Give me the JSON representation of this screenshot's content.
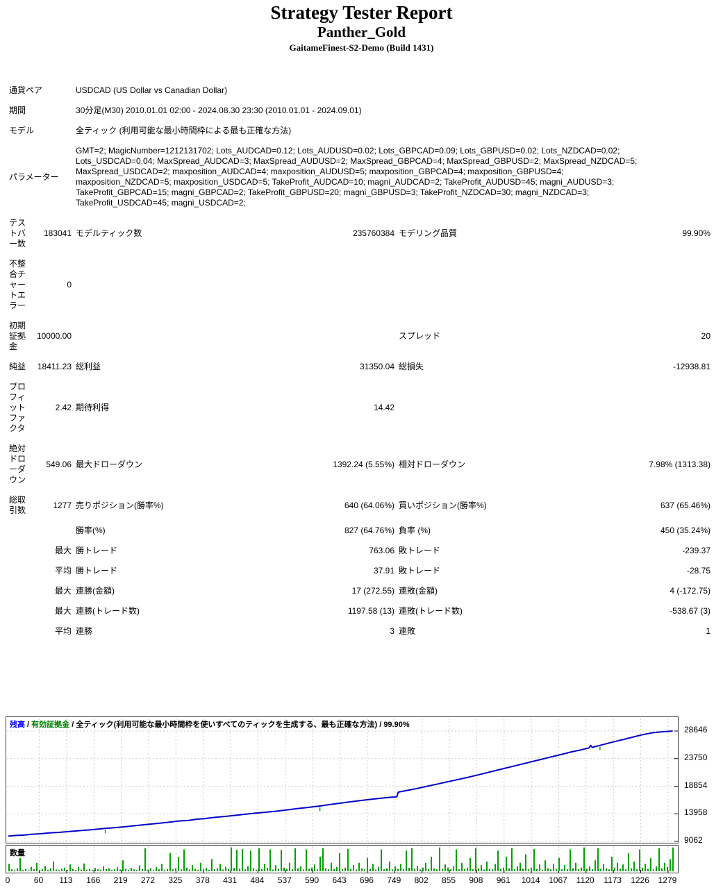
{
  "header": {
    "title": "Strategy Tester Report",
    "ea_name": "Panther_Gold",
    "server": "GaitameFinest-S2-Demo (Build 1431)"
  },
  "table": {
    "rows": [
      {
        "t": "info",
        "label": "通貨ペア",
        "value": "USDCAD (US Dollar vs Canadian Dollar)"
      },
      {
        "t": "info",
        "label": "期間",
        "value": "30分足(M30) 2010.01.01 02:00 - 2024.08.30 23:30 (2010.01.01 - 2024.09.01)"
      },
      {
        "t": "info",
        "label": "モデル",
        "value": "全ティック (利用可能な最小時間枠による最も正確な方法)"
      },
      {
        "t": "info",
        "label": "パラメーター",
        "value": "GMT=2; MagicNumber=1212131702; Lots_AUDCAD=0.12; Lots_AUDUSD=0.02; Lots_GBPCAD=0.09; Lots_GBPUSD=0.02; Lots_NZDCAD=0.02;\nLots_USDCAD=0.04; MaxSpread_AUDCAD=3; MaxSpread_AUDUSD=2; MaxSpread_GBPCAD=4; MaxSpread_GBPUSD=2; MaxSpread_NZDCAD=5;\nMaxSpread_USDCAD=2; maxposition_AUDCAD=4; maxposition_AUDUSD=5; maxposition_GBPCAD=4; maxposition_GBPUSD=4;\nmaxposition_NZDCAD=5; maxposition_USDCAD=5; TakeProfit_AUDCAD=10; magni_AUDCAD=2; TakeProfit_AUDUSD=45; magni_AUDUSD=3;\nTakeProfit_GBPCAD=15; magni_GBPCAD=2; TakeProfit_GBPUSD=20; magni_GBPUSD=3; TakeProfit_NZDCAD=30; magni_NZDCAD=3;\nTakeProfit_USDCAD=45; magni_USDCAD=2;"
      },
      {
        "t": "stat",
        "c": [
          "テス\nトバ\nー数",
          "183041",
          "モデルティック数",
          "235760384",
          "モデリング品質",
          "99.90%"
        ]
      },
      {
        "t": "stat",
        "c": [
          "不整\n合チ\nャー\nトエ\nラー",
          "0",
          "",
          "",
          "",
          ""
        ]
      },
      {
        "t": "stat",
        "c": [
          "初期\n証拠\n金",
          "10000.00",
          "",
          "",
          "スプレッド",
          "20"
        ]
      },
      {
        "t": "stat",
        "c": [
          "純益",
          "18411.23",
          "総利益",
          "31350.04",
          "総損失",
          "-12938.81"
        ]
      },
      {
        "t": "stat",
        "c": [
          "プロ\nフィ\nット\nファ\nクタ",
          "2.42",
          "期待利得",
          "14.42",
          "",
          ""
        ]
      },
      {
        "t": "stat",
        "c": [
          "絶対\nドロ\nーダ\nウン",
          "549.06",
          "最大ドローダウン",
          "1392.24 (5.55%)",
          "相対ドローダウン",
          "7.98% (1313.38)"
        ]
      },
      {
        "t": "stat",
        "c": [
          "総取\n引数",
          "1277",
          "売りポジション(勝率%)",
          "640 (64.06%)",
          "買いポジション(勝率%)",
          "637 (65.46%)"
        ]
      },
      {
        "t": "stat",
        "c": [
          "",
          "",
          "勝率(%)",
          "827 (64.76%)",
          "負率 (%)",
          "450 (35.24%)"
        ]
      },
      {
        "t": "stat",
        "c": [
          "",
          "最大",
          "勝トレード",
          "763.06",
          "敗トレード",
          "-239.37"
        ]
      },
      {
        "t": "stat",
        "c": [
          "",
          "平均",
          "勝トレード",
          "37.91",
          "敗トレード",
          "-28.75"
        ]
      },
      {
        "t": "stat",
        "c": [
          "",
          "最大",
          "連勝(金額)",
          "17 (272.55)",
          "連敗(金額)",
          "4 (-172.75)"
        ]
      },
      {
        "t": "stat",
        "c": [
          "",
          "最大",
          "連勝(トレード数)",
          "1197.58 (13)",
          "連敗(トレード数)",
          "-538.67 (3)"
        ]
      },
      {
        "t": "stat",
        "c": [
          "",
          "平均",
          "連勝",
          "3",
          "連敗",
          "1"
        ]
      }
    ]
  },
  "chart_data": [
    {
      "type": "line",
      "title": "残高 / 有効証拠金 / 全ティック(利用可能な最小時間枠を使いすべてのティックを生成する、最も正確な方法) / 99.90%",
      "legend": {
        "balance_label": "残高",
        "equity_label": "有効証拠金",
        "model_label": "全ティック(利用可能な最小時間枠を使いすべてのティックを生成する、最も正確な方法)",
        "quality_label": "99.90%",
        "sep": " / "
      },
      "colors": {
        "balance_line": "#0000c8",
        "balance_text": "#0000ff",
        "equity_text": "#008000",
        "grid": "#c9c9c9",
        "frame": "#3a3a3a"
      },
      "ylabel": "",
      "xlabel": "",
      "y_ticks": [
        28646,
        23750,
        18854,
        13958,
        9062
      ],
      "x_ticks": [
        0,
        60,
        113,
        166,
        219,
        272,
        325,
        378,
        431,
        484,
        537,
        590,
        643,
        696,
        749,
        802,
        855,
        908,
        961,
        1014,
        1067,
        1120,
        1173,
        1226,
        1279
      ],
      "x_range": [
        0,
        1288
      ],
      "y_range": [
        9062,
        29300
      ],
      "points": [
        [
          0,
          10000
        ],
        [
          15,
          10120
        ],
        [
          30,
          10180
        ],
        [
          45,
          10320
        ],
        [
          60,
          10400
        ],
        [
          80,
          10560
        ],
        [
          100,
          10680
        ],
        [
          120,
          10840
        ],
        [
          140,
          10980
        ],
        [
          160,
          11120
        ],
        [
          188,
          11380
        ],
        [
          210,
          11520
        ],
        [
          230,
          11700
        ],
        [
          250,
          11900
        ],
        [
          270,
          12080
        ],
        [
          290,
          12260
        ],
        [
          310,
          12450
        ],
        [
          330,
          12680
        ],
        [
          350,
          12800
        ],
        [
          365,
          13000
        ],
        [
          380,
          13100
        ],
        [
          400,
          13320
        ],
        [
          420,
          13500
        ],
        [
          440,
          13680
        ],
        [
          460,
          13900
        ],
        [
          480,
          14080
        ],
        [
          500,
          14250
        ],
        [
          520,
          14420
        ],
        [
          540,
          14650
        ],
        [
          560,
          14870
        ],
        [
          580,
          15090
        ],
        [
          600,
          15300
        ],
        [
          604,
          15340
        ],
        [
          620,
          15560
        ],
        [
          640,
          15800
        ],
        [
          660,
          16040
        ],
        [
          680,
          16280
        ],
        [
          700,
          16500
        ],
        [
          720,
          16700
        ],
        [
          740,
          16880
        ],
        [
          750,
          16950
        ],
        [
          753,
          17000
        ],
        [
          756,
          17810
        ],
        [
          770,
          18050
        ],
        [
          790,
          18400
        ],
        [
          810,
          18800
        ],
        [
          830,
          19200
        ],
        [
          850,
          19600
        ],
        [
          870,
          20000
        ],
        [
          890,
          20400
        ],
        [
          910,
          20850
        ],
        [
          930,
          21300
        ],
        [
          950,
          21750
        ],
        [
          970,
          22200
        ],
        [
          990,
          22650
        ],
        [
          1010,
          23100
        ],
        [
          1030,
          23550
        ],
        [
          1050,
          24000
        ],
        [
          1070,
          24450
        ],
        [
          1090,
          24900
        ],
        [
          1110,
          25300
        ],
        [
          1126,
          25650
        ],
        [
          1129,
          26100
        ],
        [
          1132,
          25750
        ],
        [
          1147,
          26100
        ],
        [
          1170,
          26650
        ],
        [
          1190,
          27100
        ],
        [
          1210,
          27550
        ],
        [
          1230,
          28000
        ],
        [
          1250,
          28350
        ],
        [
          1265,
          28500
        ],
        [
          1288,
          28650
        ]
      ],
      "equity_marks": [
        [
          188,
          11380
        ],
        [
          604,
          15340
        ],
        [
          1147,
          26100
        ]
      ]
    },
    {
      "type": "bar",
      "title": "数量",
      "bar_color": "#00a000",
      "ylim": [
        0,
        100
      ],
      "values": [
        30,
        8,
        5,
        12,
        55,
        6,
        10,
        4,
        18,
        8,
        35,
        5,
        8,
        22,
        6,
        12,
        40,
        7,
        5,
        10,
        15,
        6,
        28,
        9,
        5,
        18,
        7,
        32,
        6,
        10,
        5,
        14,
        8,
        6,
        20,
        9,
        12,
        5,
        8,
        16,
        7,
        45,
        10,
        6,
        14,
        8,
        5,
        24,
        9,
        95,
        7,
        12,
        6,
        18,
        8,
        30,
        5,
        10,
        75,
        8,
        12,
        60,
        8,
        90,
        15,
        7,
        25,
        10,
        5,
        35,
        9,
        14,
        6,
        50,
        8,
        12,
        30,
        7,
        18,
        10,
        98,
        14,
        88,
        10,
        92,
        8,
        20,
        85,
        12,
        6,
        95,
        9,
        30,
        14,
        90,
        7,
        25,
        10,
        88,
        15,
        10,
        35,
        8,
        95,
        12,
        20,
        7,
        90,
        10,
        15,
        28,
        8,
        60,
        95,
        12,
        8,
        35,
        10,
        18,
        75,
        8,
        15,
        92,
        10,
        25,
        7,
        35,
        12,
        8,
        55,
        10,
        30,
        6,
        18,
        90,
        8,
        12,
        40,
        7,
        20,
        10,
        30,
        8,
        85,
        14,
        95,
        10,
        22,
        7,
        15,
        35,
        9,
        60,
        12,
        8,
        98,
        10,
        28,
        15,
        8,
        20,
        90,
        8,
        35,
        10,
        15,
        55,
        8,
        95,
        12,
        25,
        7,
        40,
        10,
        8,
        30,
        85,
        10,
        15,
        60,
        12,
        95,
        8,
        20,
        35,
        10,
        70,
        8,
        15,
        92,
        10,
        28,
        6,
        45,
        12,
        8,
        30,
        10,
        55,
        8,
        25,
        8,
        90,
        12,
        35,
        8,
        15,
        98,
        10,
        20,
        8,
        45,
        95,
        10,
        30,
        12,
        8,
        60,
        15,
        35,
        10,
        28,
        8,
        75,
        12,
        40,
        8,
        90,
        15,
        30,
        10,
        55,
        8,
        20,
        95,
        12,
        35,
        18,
        50,
        98
      ]
    }
  ]
}
